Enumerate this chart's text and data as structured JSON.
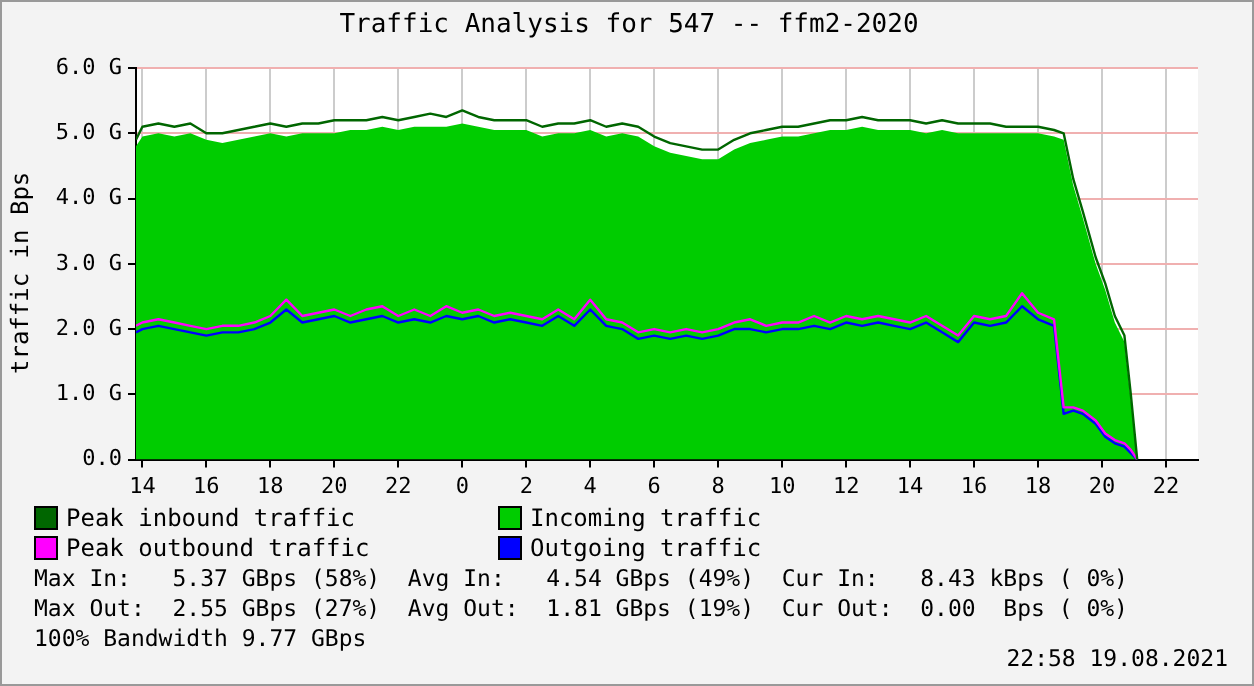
{
  "chart_data": {
    "type": "line",
    "title": "Traffic Analysis for 547 -- ffm2-2020",
    "ylabel": "traffic in Bps",
    "x": [
      "2021-08-18T13:48",
      "2021-08-18T14:00",
      "2021-08-18T14:30",
      "2021-08-18T15:00",
      "2021-08-18T15:30",
      "2021-08-18T16:00",
      "2021-08-18T16:30",
      "2021-08-18T17:00",
      "2021-08-18T17:30",
      "2021-08-18T18:00",
      "2021-08-18T18:30",
      "2021-08-18T19:00",
      "2021-08-18T19:30",
      "2021-08-18T20:00",
      "2021-08-18T20:30",
      "2021-08-18T21:00",
      "2021-08-18T21:30",
      "2021-08-18T22:00",
      "2021-08-18T22:30",
      "2021-08-18T23:00",
      "2021-08-18T23:30",
      "2021-08-19T00:00",
      "2021-08-19T00:30",
      "2021-08-19T01:00",
      "2021-08-19T01:30",
      "2021-08-19T02:00",
      "2021-08-19T02:30",
      "2021-08-19T03:00",
      "2021-08-19T03:30",
      "2021-08-19T04:00",
      "2021-08-19T04:30",
      "2021-08-19T05:00",
      "2021-08-19T05:30",
      "2021-08-19T06:00",
      "2021-08-19T06:30",
      "2021-08-19T07:00",
      "2021-08-19T07:30",
      "2021-08-19T08:00",
      "2021-08-19T08:30",
      "2021-08-19T09:00",
      "2021-08-19T09:30",
      "2021-08-19T10:00",
      "2021-08-19T10:30",
      "2021-08-19T11:00",
      "2021-08-19T11:30",
      "2021-08-19T12:00",
      "2021-08-19T12:30",
      "2021-08-19T13:00",
      "2021-08-19T13:30",
      "2021-08-19T14:00",
      "2021-08-19T14:30",
      "2021-08-19T15:00",
      "2021-08-19T15:30",
      "2021-08-19T16:00",
      "2021-08-19T16:30",
      "2021-08-19T17:00",
      "2021-08-19T17:30",
      "2021-08-19T18:00",
      "2021-08-19T18:30",
      "2021-08-19T18:48",
      "2021-08-19T19:06",
      "2021-08-19T19:24",
      "2021-08-19T19:48",
      "2021-08-19T20:06",
      "2021-08-19T20:24",
      "2021-08-19T20:42",
      "2021-08-19T20:54",
      "2021-08-19T21:06"
    ],
    "series": [
      {
        "name": "Incoming traffic",
        "type": "area",
        "color": "#00cc00",
        "values": [
          4.8,
          4.95,
          5.0,
          4.95,
          5.0,
          4.9,
          4.85,
          4.9,
          4.95,
          5.0,
          4.95,
          5.0,
          5.0,
          5.0,
          5.05,
          5.05,
          5.1,
          5.05,
          5.1,
          5.1,
          5.1,
          5.15,
          5.1,
          5.05,
          5.05,
          5.05,
          4.95,
          5.0,
          5.0,
          5.05,
          4.95,
          5.0,
          4.95,
          4.8,
          4.7,
          4.65,
          4.6,
          4.6,
          4.75,
          4.85,
          4.9,
          4.95,
          4.95,
          5.0,
          5.05,
          5.05,
          5.1,
          5.05,
          5.05,
          5.05,
          5.0,
          5.05,
          5.0,
          5.0,
          5.0,
          5.0,
          5.0,
          5.0,
          4.95,
          4.9,
          4.2,
          3.7,
          3.0,
          2.6,
          2.1,
          1.8,
          0.9,
          0
        ]
      },
      {
        "name": "Peak inbound traffic",
        "type": "line",
        "color": "#006600",
        "values": [
          4.9,
          5.1,
          5.15,
          5.1,
          5.15,
          5.0,
          5.0,
          5.05,
          5.1,
          5.15,
          5.1,
          5.15,
          5.15,
          5.2,
          5.2,
          5.2,
          5.25,
          5.2,
          5.25,
          5.3,
          5.25,
          5.35,
          5.25,
          5.2,
          5.2,
          5.2,
          5.1,
          5.15,
          5.15,
          5.2,
          5.1,
          5.15,
          5.1,
          4.95,
          4.85,
          4.8,
          4.75,
          4.75,
          4.9,
          5.0,
          5.05,
          5.1,
          5.1,
          5.15,
          5.2,
          5.2,
          5.25,
          5.2,
          5.2,
          5.2,
          5.15,
          5.2,
          5.15,
          5.15,
          5.15,
          5.1,
          5.1,
          5.1,
          5.05,
          5.0,
          4.3,
          3.8,
          3.1,
          2.7,
          2.2,
          1.9,
          1.0,
          0
        ]
      },
      {
        "name": "Peak outbound traffic",
        "type": "line",
        "color": "#ff00ff",
        "values": [
          2.05,
          2.1,
          2.15,
          2.1,
          2.05,
          2.0,
          2.05,
          2.05,
          2.1,
          2.2,
          2.45,
          2.2,
          2.25,
          2.3,
          2.2,
          2.3,
          2.35,
          2.2,
          2.3,
          2.2,
          2.35,
          2.25,
          2.3,
          2.2,
          2.25,
          2.2,
          2.15,
          2.3,
          2.15,
          2.45,
          2.15,
          2.1,
          1.95,
          2.0,
          1.95,
          2.0,
          1.95,
          2.0,
          2.1,
          2.15,
          2.05,
          2.1,
          2.1,
          2.2,
          2.1,
          2.2,
          2.15,
          2.2,
          2.15,
          2.1,
          2.2,
          2.05,
          1.9,
          2.2,
          2.15,
          2.2,
          2.55,
          2.25,
          2.15,
          0.8,
          0.8,
          0.75,
          0.6,
          0.4,
          0.3,
          0.25,
          0.15,
          0
        ]
      },
      {
        "name": "Outgoing traffic",
        "type": "line",
        "color": "#0000ff",
        "values": [
          1.95,
          2.0,
          2.05,
          2.0,
          1.95,
          1.9,
          1.95,
          1.95,
          2.0,
          2.1,
          2.3,
          2.1,
          2.15,
          2.2,
          2.1,
          2.15,
          2.2,
          2.1,
          2.15,
          2.1,
          2.2,
          2.15,
          2.2,
          2.1,
          2.15,
          2.1,
          2.05,
          2.2,
          2.05,
          2.3,
          2.05,
          2.0,
          1.85,
          1.9,
          1.85,
          1.9,
          1.85,
          1.9,
          2.0,
          2.0,
          1.95,
          2.0,
          2.0,
          2.05,
          2.0,
          2.1,
          2.05,
          2.1,
          2.05,
          2.0,
          2.1,
          1.95,
          1.8,
          2.1,
          2.05,
          2.1,
          2.35,
          2.15,
          2.05,
          0.7,
          0.75,
          0.7,
          0.55,
          0.35,
          0.25,
          0.2,
          0.1,
          0
        ]
      }
    ],
    "xlim": [
      "2021-08-18T13:48",
      "2021-08-19T23:00"
    ],
    "xticks": [
      {
        "value": "2021-08-18T14:00",
        "label": "14"
      },
      {
        "value": "2021-08-18T16:00",
        "label": "16"
      },
      {
        "value": "2021-08-18T18:00",
        "label": "18"
      },
      {
        "value": "2021-08-18T20:00",
        "label": "20"
      },
      {
        "value": "2021-08-18T22:00",
        "label": "22"
      },
      {
        "value": "2021-08-19T00:00",
        "label": "0"
      },
      {
        "value": "2021-08-19T02:00",
        "label": "2"
      },
      {
        "value": "2021-08-19T04:00",
        "label": "4"
      },
      {
        "value": "2021-08-19T06:00",
        "label": "6"
      },
      {
        "value": "2021-08-19T08:00",
        "label": "8"
      },
      {
        "value": "2021-08-19T10:00",
        "label": "10"
      },
      {
        "value": "2021-08-19T12:00",
        "label": "12"
      },
      {
        "value": "2021-08-19T14:00",
        "label": "14"
      },
      {
        "value": "2021-08-19T16:00",
        "label": "16"
      },
      {
        "value": "2021-08-19T18:00",
        "label": "18"
      },
      {
        "value": "2021-08-19T20:00",
        "label": "20"
      },
      {
        "value": "2021-08-19T22:00",
        "label": "22"
      }
    ],
    "ylim": [
      0,
      6
    ],
    "yticks": [
      {
        "value": 0,
        "label": "0.0"
      },
      {
        "value": 1,
        "label": "1.0 G"
      },
      {
        "value": 2,
        "label": "2.0 G"
      },
      {
        "value": 3,
        "label": "3.0 G"
      },
      {
        "value": 4,
        "label": "4.0 G"
      },
      {
        "value": 5,
        "label": "5.0 G"
      },
      {
        "value": 6,
        "label": "6.0 G"
      }
    ],
    "grid": true,
    "legend": "bottom",
    "marker": "none",
    "annotations": [
      "Max In:   5.37 GBps (58%)  Avg In:   4.54 GBps (49%)  Cur In:   8.43 kBps ( 0%)",
      "Max Out:  2.55 GBps (27%)  Avg Out:  1.81 GBps (19%)  Cur Out:  0.00  Bps ( 0%)",
      "100% Bandwidth 9.77 GBps",
      "22:58 19.08.2021"
    ]
  }
}
